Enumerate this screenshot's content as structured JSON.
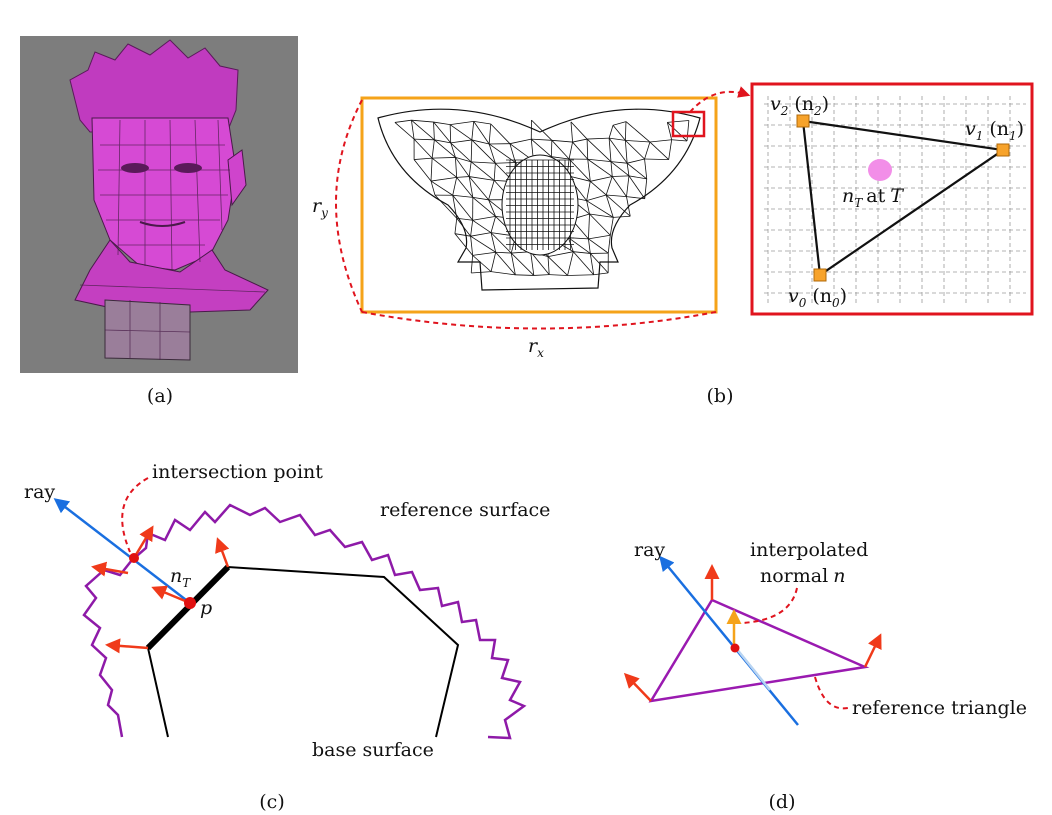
{
  "panel_a": {
    "caption": "(a)"
  },
  "panel_b": {
    "caption": "(b)",
    "r_y": "r",
    "r_y_sub": "y",
    "r_x": "r",
    "r_x_sub": "x",
    "v2_label": "v",
    "v2_sub": "2",
    "n2_label": "(n",
    "n2_sub": "2",
    "v1_label": "v",
    "v1_sub": "1",
    "n1_label": "(n",
    "n1_sub": "1",
    "v0_label": "v",
    "v0_sub": "0",
    "n0_label": "(n",
    "n0_sub": "0",
    "close_paren": ")",
    "nT_label": "n",
    "nT_sub": "T",
    "at_text": "at",
    "T_text": "T",
    "colors": {
      "frame_orange": "#f5a31a",
      "frame_red": "#e0141e",
      "vertex_fill": "#f7a32b",
      "dot_pink": "#f28ee8"
    }
  },
  "panel_c": {
    "caption": "(c)",
    "ray_label": "ray",
    "intersection_label": "intersection point",
    "reference_label": "reference surface",
    "base_label": "base surface",
    "nT_label": "n",
    "nT_sub": "T",
    "p_label": "p",
    "colors": {
      "ray": "#1a6fe0",
      "normal": "#f03a1a",
      "reference": "#8e1aa8",
      "base": "#000000",
      "point": "#e01010"
    }
  },
  "panel_d": {
    "caption": "(d)",
    "ray_label": "ray",
    "interp_label_1": "interpolated",
    "interp_label_2": "normal",
    "interp_n": "n",
    "triangle_label": "reference triangle",
    "colors": {
      "ray": "#1a6fe0",
      "normal": "#f03a1a",
      "interp_normal": "#f5a31a",
      "triangle": "#9a1ab0"
    }
  }
}
